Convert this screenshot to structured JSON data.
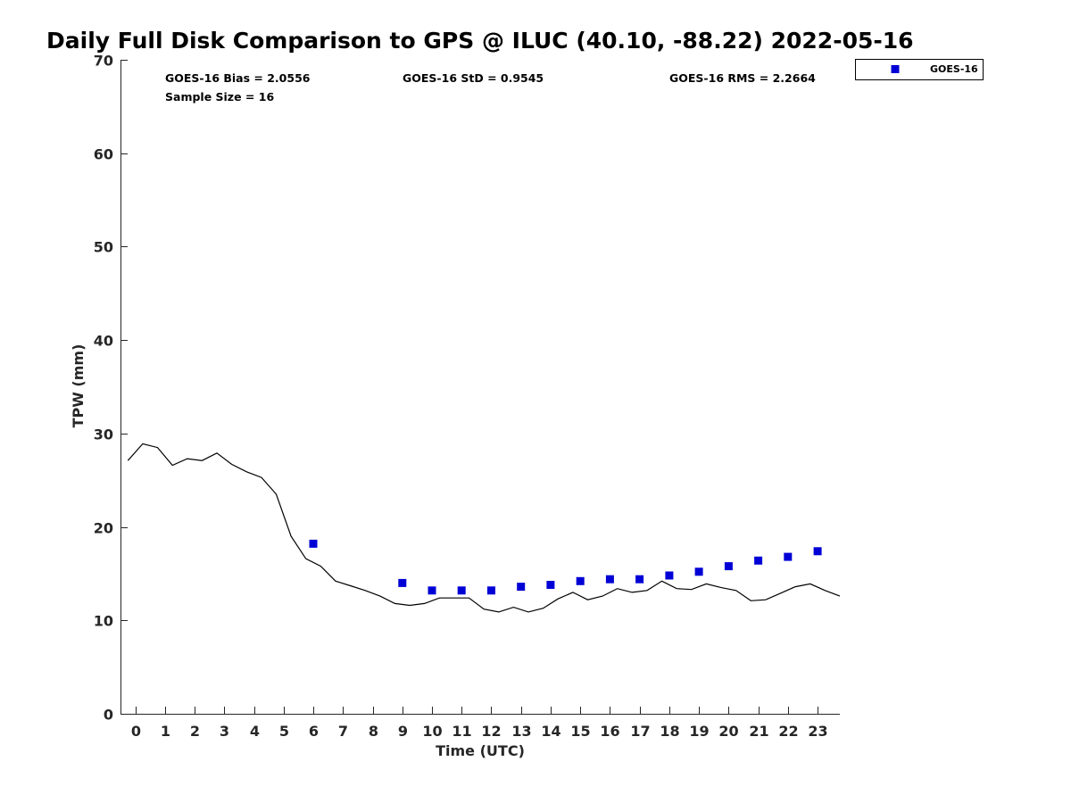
{
  "chart_data": {
    "type": "scatter",
    "title": "Daily Full Disk Comparison to GPS @ ILUC (40.10, -88.22) 2022-05-16",
    "xlabel": "Time (UTC)",
    "ylabel": "TPW (mm)",
    "xlim": [
      -0.5,
      23.75
    ],
    "ylim": [
      0,
      70
    ],
    "x_ticks": [
      0,
      1,
      2,
      3,
      4,
      5,
      6,
      7,
      8,
      9,
      10,
      11,
      12,
      13,
      14,
      15,
      16,
      17,
      18,
      19,
      20,
      21,
      22,
      23
    ],
    "y_ticks": [
      0,
      10,
      20,
      30,
      40,
      50,
      60,
      70
    ],
    "stats": {
      "bias": "GOES-16 Bias = 2.0556",
      "std": "GOES-16 StD = 0.9545",
      "rms": "GOES-16 RMS = 2.2664",
      "sample": "Sample Size = 16"
    },
    "legend": {
      "position": "top-right-outside",
      "entries": [
        "GOES-16"
      ]
    },
    "series": [
      {
        "name": "GPS",
        "kind": "line",
        "color": "#000000",
        "x": [
          -0.25,
          0.25,
          0.75,
          1.25,
          1.75,
          2.25,
          2.75,
          3.25,
          3.75,
          4.25,
          4.75,
          5.25,
          5.75,
          6.25,
          6.75,
          7.25,
          7.75,
          8.25,
          8.75,
          9.25,
          9.75,
          10.25,
          10.75,
          11.25,
          11.75,
          12.25,
          12.75,
          13.25,
          13.75,
          14.25,
          14.75,
          15.25,
          15.75,
          16.25,
          16.75,
          17.25,
          17.75,
          18.25,
          18.75,
          19.25,
          19.75,
          20.25,
          20.75,
          21.25,
          21.75,
          22.25,
          22.75,
          23.25,
          23.75
        ],
        "y": [
          27.1,
          28.9,
          28.5,
          26.6,
          27.3,
          27.1,
          27.9,
          26.7,
          25.9,
          25.3,
          23.5,
          19.0,
          16.6,
          15.8,
          14.2,
          13.7,
          13.2,
          12.6,
          11.8,
          11.6,
          11.8,
          12.4,
          12.4,
          12.4,
          11.2,
          10.9,
          11.4,
          10.9,
          11.3,
          12.3,
          13.0,
          12.2,
          12.6,
          13.4,
          13.0,
          13.2,
          14.2,
          13.4,
          13.3,
          13.9,
          13.5,
          13.2,
          12.1,
          12.2,
          12.9,
          13.6,
          13.9,
          13.2,
          12.6
        ]
      },
      {
        "name": "GOES-16",
        "kind": "scatter",
        "color": "#0000d6",
        "x": [
          6,
          9,
          10,
          11,
          12,
          13,
          14,
          15,
          16,
          17,
          18,
          19,
          20,
          21,
          22,
          23
        ],
        "y": [
          18.2,
          14.0,
          13.2,
          13.2,
          13.2,
          13.6,
          13.8,
          14.2,
          14.4,
          14.4,
          14.8,
          15.2,
          15.8,
          16.4,
          16.8,
          17.4
        ]
      }
    ]
  }
}
